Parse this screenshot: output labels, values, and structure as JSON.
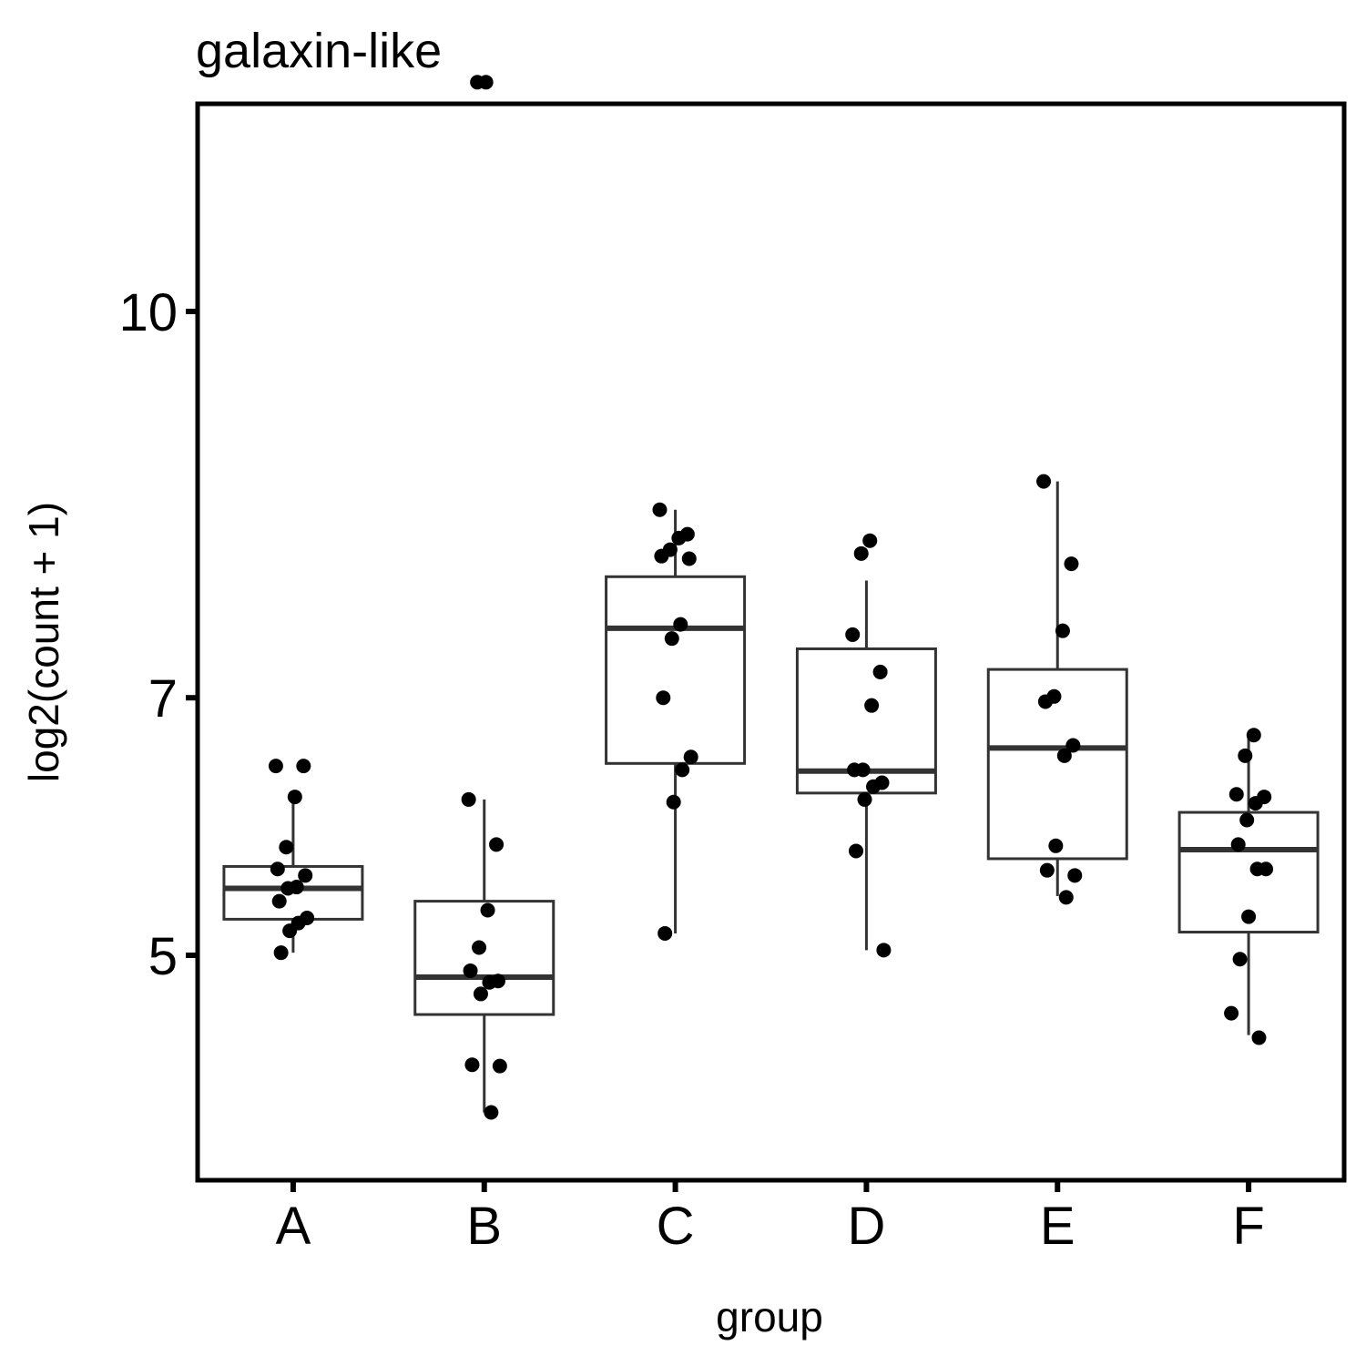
{
  "chart_data": {
    "type": "boxplot",
    "title": "galaxin-like",
    "xlabel": "group",
    "ylabel": "log2(count + 1)",
    "categories": [
      "A",
      "B",
      "C",
      "D",
      "E",
      "F"
    ],
    "y_scale": "linear",
    "ylim": [
      3.6,
      12.1
    ],
    "y_ticks": [
      5,
      7,
      10
    ],
    "y_tick_labels": [
      "5",
      "7",
      "10"
    ],
    "grid": false,
    "legend": "none",
    "box_color": "#333333",
    "point_color": "#000000",
    "boxes": [
      {
        "group": "A",
        "lower_whisker": 5.02,
        "q1": 5.28,
        "median": 5.52,
        "q3": 5.69,
        "upper_whisker": 6.23
      },
      {
        "group": "B",
        "lower_whisker": 3.78,
        "q1": 4.54,
        "median": 4.83,
        "q3": 5.42,
        "upper_whisker": 6.21
      },
      {
        "group": "C",
        "lower_whisker": 5.17,
        "q1": 6.49,
        "median": 7.54,
        "q3": 7.94,
        "upper_whisker": 8.46
      },
      {
        "group": "D",
        "lower_whisker": 5.04,
        "q1": 6.26,
        "median": 6.43,
        "q3": 7.38,
        "upper_whisker": 7.91
      },
      {
        "group": "E",
        "lower_whisker": 5.46,
        "q1": 5.75,
        "median": 6.61,
        "q3": 7.22,
        "upper_whisker": 8.68
      },
      {
        "group": "F",
        "lower_whisker": 4.38,
        "q1": 5.18,
        "median": 5.82,
        "q3": 6.11,
        "upper_whisker": 6.71
      }
    ],
    "points": [
      {
        "group": "A",
        "y": [
          6.47,
          6.47,
          6.23,
          5.84,
          5.67,
          5.62,
          5.53,
          5.52,
          5.42,
          5.29,
          5.25,
          5.19,
          5.02
        ]
      },
      {
        "group": "B",
        "y": [
          11.78,
          11.78,
          6.21,
          5.86,
          5.35,
          5.06,
          4.88,
          4.8,
          4.79,
          4.7,
          4.15,
          4.14,
          3.78
        ]
      },
      {
        "group": "C",
        "y": [
          8.46,
          8.27,
          8.24,
          8.15,
          8.1,
          8.08,
          7.57,
          7.46,
          7.0,
          6.54,
          6.44,
          6.19,
          5.17
        ]
      },
      {
        "group": "D",
        "y": [
          8.22,
          8.12,
          7.49,
          7.2,
          6.94,
          6.44,
          6.44,
          6.34,
          6.31,
          6.21,
          5.81,
          5.04
        ]
      },
      {
        "group": "E",
        "y": [
          8.68,
          8.04,
          7.52,
          7.01,
          6.97,
          6.63,
          6.55,
          5.85,
          5.66,
          5.62,
          5.45
        ]
      },
      {
        "group": "F",
        "y": [
          6.71,
          6.55,
          6.25,
          6.23,
          6.18,
          6.05,
          5.86,
          5.67,
          5.67,
          5.3,
          4.97,
          4.55,
          4.36
        ]
      }
    ]
  }
}
